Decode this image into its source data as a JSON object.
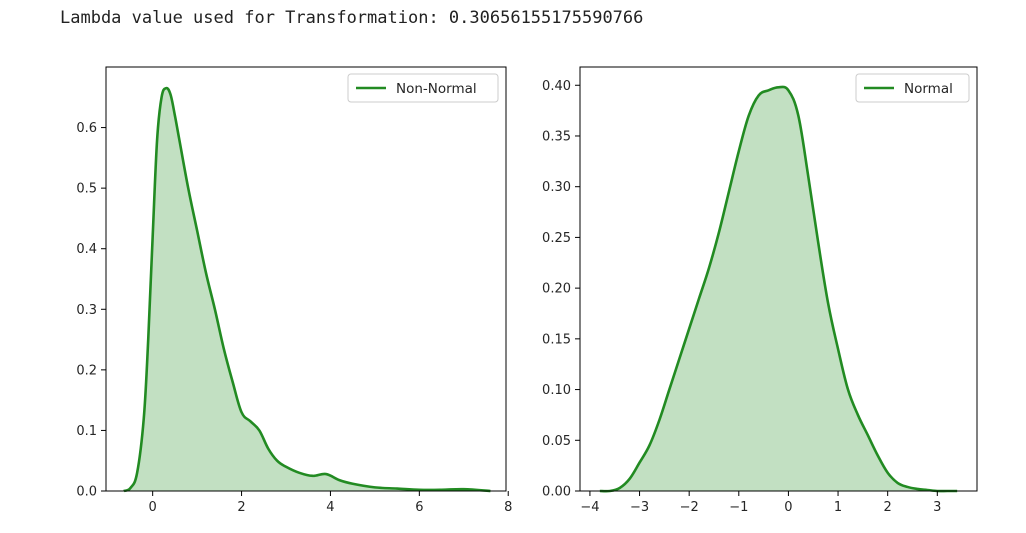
{
  "output_text": "Lambda value used for Transformation: 0.30656155175590766",
  "colors": {
    "line": "#228b22",
    "fill": "#c2e0c2",
    "axis": "#000000",
    "legend_border": "#cccccc"
  },
  "chart_data": [
    {
      "type": "area",
      "series": [
        {
          "name": "Non-Normal",
          "x": [
            -0.65,
            -0.5,
            -0.35,
            -0.2,
            -0.1,
            0.0,
            0.1,
            0.2,
            0.3,
            0.4,
            0.5,
            0.6,
            0.8,
            1.0,
            1.2,
            1.4,
            1.6,
            1.8,
            2.0,
            2.2,
            2.4,
            2.6,
            2.8,
            3.0,
            3.3,
            3.6,
            3.9,
            4.2,
            4.5,
            5.0,
            5.5,
            6.0,
            6.5,
            7.0,
            7.6
          ],
          "values": [
            0.0,
            0.005,
            0.03,
            0.12,
            0.25,
            0.42,
            0.58,
            0.65,
            0.665,
            0.655,
            0.62,
            0.58,
            0.5,
            0.43,
            0.36,
            0.3,
            0.235,
            0.18,
            0.13,
            0.115,
            0.1,
            0.07,
            0.05,
            0.04,
            0.03,
            0.025,
            0.028,
            0.018,
            0.012,
            0.006,
            0.004,
            0.002,
            0.002,
            0.003,
            0.0
          ]
        }
      ],
      "x_ticks": [
        0,
        2,
        4,
        6,
        8
      ],
      "x_tick_labels": [
        "0",
        "2",
        "4",
        "6",
        "8"
      ],
      "xlim": [
        -1.05,
        7.95
      ],
      "y_ticks": [
        0.0,
        0.1,
        0.2,
        0.3,
        0.4,
        0.5,
        0.6
      ],
      "y_tick_labels": [
        "0.0",
        "0.1",
        "0.2",
        "0.3",
        "0.4",
        "0.5",
        "0.6"
      ],
      "ylim": [
        0,
        0.7
      ],
      "legend": "top-right"
    },
    {
      "type": "area",
      "series": [
        {
          "name": "Normal",
          "x": [
            -3.8,
            -3.6,
            -3.4,
            -3.2,
            -3.0,
            -2.8,
            -2.6,
            -2.4,
            -2.2,
            -2.0,
            -1.8,
            -1.6,
            -1.4,
            -1.2,
            -1.0,
            -0.8,
            -0.6,
            -0.4,
            -0.2,
            0.0,
            0.2,
            0.4,
            0.6,
            0.8,
            1.0,
            1.2,
            1.4,
            1.6,
            1.8,
            2.0,
            2.2,
            2.4,
            2.6,
            2.8,
            3.0,
            3.2,
            3.4
          ],
          "values": [
            0.0,
            0.0,
            0.003,
            0.012,
            0.028,
            0.045,
            0.07,
            0.1,
            0.13,
            0.16,
            0.19,
            0.22,
            0.255,
            0.295,
            0.335,
            0.37,
            0.39,
            0.395,
            0.398,
            0.395,
            0.37,
            0.31,
            0.245,
            0.185,
            0.14,
            0.1,
            0.075,
            0.055,
            0.035,
            0.018,
            0.008,
            0.004,
            0.002,
            0.001,
            0.0,
            0.0,
            0.0
          ]
        }
      ],
      "x_ticks": [
        -4,
        -3,
        -2,
        -1,
        0,
        1,
        2,
        3
      ],
      "x_tick_labels": [
        "−4",
        "−3",
        "−2",
        "−1",
        "0",
        "1",
        "2",
        "3"
      ],
      "xlim": [
        -4.2,
        3.8
      ],
      "y_ticks": [
        0.0,
        0.05,
        0.1,
        0.15,
        0.2,
        0.25,
        0.3,
        0.35,
        0.4
      ],
      "y_tick_labels": [
        "0.00",
        "0.05",
        "0.10",
        "0.15",
        "0.20",
        "0.25",
        "0.30",
        "0.35",
        "0.40"
      ],
      "ylim": [
        0,
        0.418
      ],
      "legend": "top-right"
    }
  ]
}
